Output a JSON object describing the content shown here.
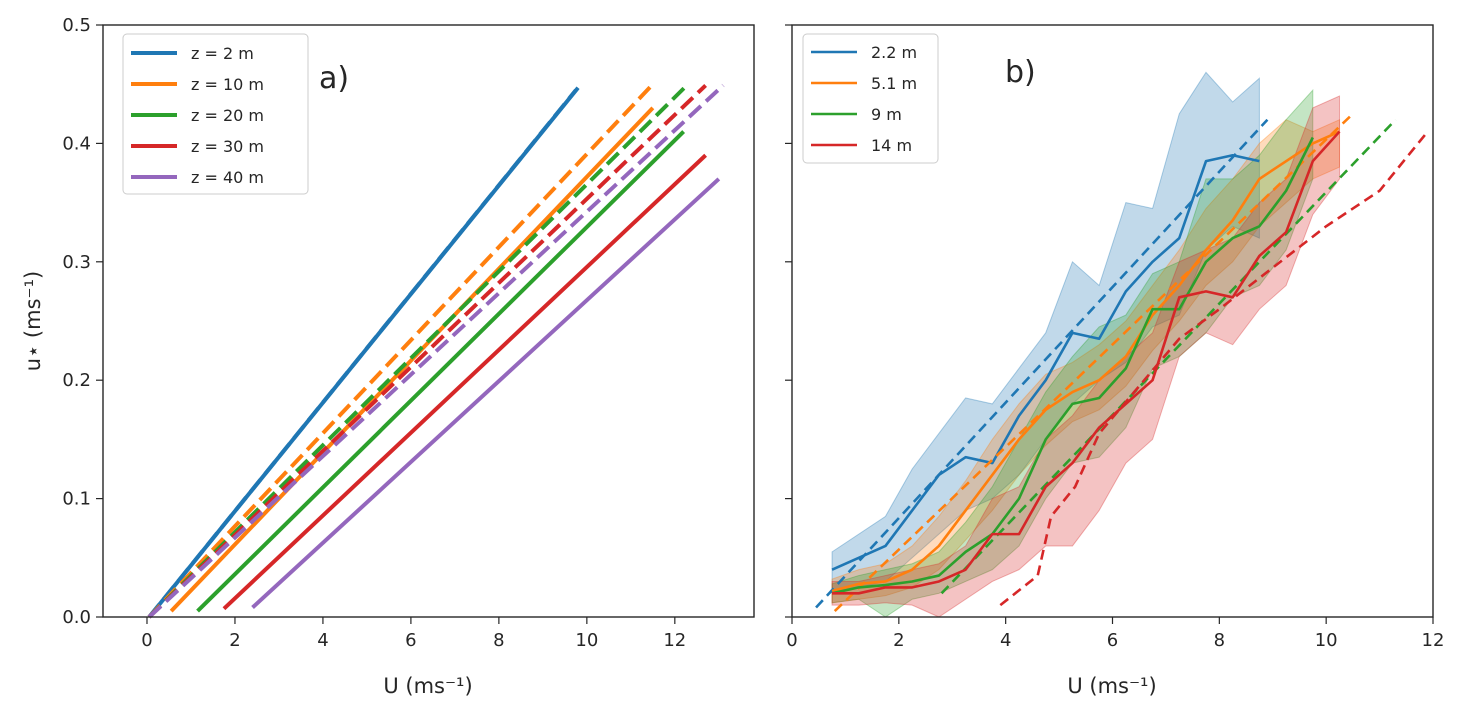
{
  "chart_data": [
    {
      "type": "line",
      "panel_label": "a)",
      "xlabel": "U (ms⁻¹)",
      "ylabel": "u⋆ (ms⁻¹)",
      "xlim": [
        -1.0,
        13.8
      ],
      "ylim": [
        0.0,
        0.5
      ],
      "xticks": [
        0,
        2,
        4,
        6,
        8,
        10,
        12
      ],
      "yticks": [
        0.0,
        0.1,
        0.2,
        0.3,
        0.4,
        0.5
      ],
      "ytick_labels": [
        "0.0",
        "0.1",
        "0.2",
        "0.3",
        "0.4",
        "0.5"
      ],
      "legend_position": "top-left",
      "colors": {
        "blue": "#1f77b4",
        "orange": "#ff7f0e",
        "green": "#2ca02c",
        "red": "#d62728",
        "purple": "#9467bd"
      },
      "series": [
        {
          "name": "z = 2 m",
          "color": "#1f77b4",
          "style": "solid",
          "x": [
            0.05,
            9.8
          ],
          "y": [
            0.0,
            0.447
          ]
        },
        {
          "name": "z = 10 m",
          "color": "#ff7f0e",
          "style": "solid",
          "x": [
            0.55,
            11.5
          ],
          "y": [
            0.005,
            0.43
          ]
        },
        {
          "name": "z = 20 m",
          "color": "#2ca02c",
          "style": "solid",
          "x": [
            1.15,
            12.2
          ],
          "y": [
            0.005,
            0.41
          ]
        },
        {
          "name": "z = 30 m",
          "color": "#d62728",
          "style": "solid",
          "x": [
            1.75,
            12.7
          ],
          "y": [
            0.007,
            0.39
          ]
        },
        {
          "name": "z = 40 m",
          "color": "#9467bd",
          "style": "solid",
          "x": [
            2.4,
            13.0
          ],
          "y": [
            0.008,
            0.37
          ]
        },
        {
          "name": "z = 2 m (dashed)",
          "color": "#1f77b4",
          "style": "dashed",
          "x": [
            0.05,
            9.75
          ],
          "y": [
            0.0,
            0.445
          ]
        },
        {
          "name": "z = 10 m (dashed)",
          "color": "#ff7f0e",
          "style": "dashed",
          "x": [
            0.05,
            11.5
          ],
          "y": [
            0.0,
            0.45
          ]
        },
        {
          "name": "z = 20 m (dashed)",
          "color": "#2ca02c",
          "style": "dashed",
          "x": [
            0.05,
            12.3
          ],
          "y": [
            0.0,
            0.45
          ]
        },
        {
          "name": "z = 30 m (dashed)",
          "color": "#d62728",
          "style": "dashed",
          "x": [
            0.05,
            12.7
          ],
          "y": [
            0.0,
            0.449
          ]
        },
        {
          "name": "z = 40 m (dashed)",
          "color": "#9467bd",
          "style": "dashed",
          "x": [
            0.05,
            13.1
          ],
          "y": [
            0.0,
            0.449
          ]
        }
      ]
    },
    {
      "type": "line",
      "panel_label": "b)",
      "xlabel": "U (ms⁻¹)",
      "xlim": [
        0,
        12
      ],
      "ylim": [
        0.0,
        0.5
      ],
      "xticks": [
        0,
        2,
        4,
        6,
        8,
        10,
        12
      ],
      "legend_position": "top-left",
      "series": [
        {
          "name": "2.2 m",
          "color": "#1f77b4",
          "x": [
            0.75,
            1.75,
            2.25,
            2.75,
            3.25,
            3.75,
            4.25,
            4.75,
            5.25,
            5.75,
            6.25,
            6.75,
            7.25,
            7.75,
            8.25,
            8.75
          ],
          "y": [
            0.04,
            0.06,
            0.09,
            0.12,
            0.135,
            0.13,
            0.17,
            0.2,
            0.24,
            0.235,
            0.275,
            0.3,
            0.32,
            0.385,
            0.39,
            0.385
          ],
          "upper": [
            0.055,
            0.085,
            0.125,
            0.155,
            0.185,
            0.18,
            0.21,
            0.24,
            0.3,
            0.28,
            0.35,
            0.345,
            0.425,
            0.46,
            0.435,
            0.455
          ],
          "lower": [
            0.02,
            0.03,
            0.05,
            0.07,
            0.09,
            0.1,
            0.12,
            0.15,
            0.18,
            0.2,
            0.215,
            0.245,
            0.255,
            0.31,
            0.33,
            0.32
          ],
          "fit_x": [
            0.45,
            8.9
          ],
          "fit_y": [
            0.008,
            0.42
          ]
        },
        {
          "name": "5.1 m",
          "color": "#ff7f0e",
          "x": [
            0.75,
            1.25,
            1.75,
            2.25,
            2.75,
            3.25,
            3.75,
            4.25,
            4.75,
            5.25,
            5.75,
            6.25,
            6.75,
            7.25,
            7.75,
            8.25,
            8.75,
            9.25,
            9.75,
            10.25
          ],
          "y": [
            0.022,
            0.028,
            0.03,
            0.04,
            0.06,
            0.09,
            0.12,
            0.15,
            0.175,
            0.19,
            0.2,
            0.22,
            0.255,
            0.28,
            0.31,
            0.335,
            0.37,
            0.385,
            0.4,
            0.41
          ],
          "upper": [
            0.032,
            0.04,
            0.045,
            0.06,
            0.085,
            0.115,
            0.15,
            0.18,
            0.205,
            0.215,
            0.23,
            0.25,
            0.28,
            0.31,
            0.345,
            0.37,
            0.4,
            0.42,
            0.41,
            0.42
          ],
          "lower": [
            0.012,
            0.015,
            0.018,
            0.025,
            0.04,
            0.065,
            0.09,
            0.12,
            0.145,
            0.165,
            0.175,
            0.195,
            0.225,
            0.25,
            0.28,
            0.3,
            0.33,
            0.35,
            0.37,
            0.38
          ],
          "fit_x": [
            0.8,
            10.5
          ],
          "fit_y": [
            0.005,
            0.425
          ]
        },
        {
          "name": "9 m",
          "color": "#2ca02c",
          "x": [
            0.75,
            1.25,
            1.75,
            2.25,
            2.75,
            3.25,
            3.75,
            4.25,
            4.75,
            5.25,
            5.75,
            6.25,
            6.75,
            7.25,
            7.75,
            8.25,
            8.75,
            9.25,
            9.75
          ],
          "y": [
            0.02,
            0.025,
            0.027,
            0.03,
            0.035,
            0.055,
            0.07,
            0.1,
            0.15,
            0.18,
            0.185,
            0.21,
            0.26,
            0.26,
            0.3,
            0.32,
            0.33,
            0.36,
            0.405
          ],
          "upper": [
            0.028,
            0.035,
            0.04,
            0.045,
            0.055,
            0.08,
            0.11,
            0.15,
            0.19,
            0.22,
            0.245,
            0.255,
            0.29,
            0.3,
            0.37,
            0.37,
            0.39,
            0.42,
            0.445
          ],
          "lower": [
            0.012,
            0.015,
            0.0,
            0.015,
            0.02,
            0.03,
            0.04,
            0.06,
            0.1,
            0.13,
            0.135,
            0.16,
            0.21,
            0.22,
            0.24,
            0.27,
            0.28,
            0.31,
            0.37
          ],
          "fit_x": [
            2.8,
            11.3
          ],
          "fit_y": [
            0.02,
            0.42
          ]
        },
        {
          "name": "14 m",
          "color": "#d62728",
          "x": [
            0.75,
            1.25,
            1.75,
            2.25,
            2.75,
            3.25,
            3.75,
            4.25,
            4.75,
            5.25,
            5.75,
            6.25,
            6.75,
            7.25,
            7.75,
            8.25,
            8.75,
            9.25,
            9.75,
            10.25
          ],
          "y": [
            0.02,
            0.02,
            0.025,
            0.025,
            0.03,
            0.04,
            0.07,
            0.07,
            0.11,
            0.13,
            0.16,
            0.18,
            0.2,
            0.27,
            0.275,
            0.27,
            0.305,
            0.325,
            0.385,
            0.41
          ],
          "upper": [
            0.03,
            0.03,
            0.035,
            0.04,
            0.045,
            0.06,
            0.1,
            0.11,
            0.15,
            0.17,
            0.2,
            0.22,
            0.24,
            0.3,
            0.31,
            0.32,
            0.35,
            0.37,
            0.43,
            0.44
          ],
          "lower": [
            0.01,
            0.01,
            0.012,
            0.01,
            0.0,
            0.015,
            0.03,
            0.04,
            0.06,
            0.06,
            0.09,
            0.13,
            0.15,
            0.22,
            0.24,
            0.23,
            0.26,
            0.28,
            0.34,
            0.37
          ],
          "fit_x": [
            3.9,
            4.6,
            4.85,
            5.3,
            5.75,
            6.5,
            7.25,
            8.0,
            9.0,
            10.0,
            11.0,
            11.9
          ],
          "fit_y": [
            0.01,
            0.035,
            0.085,
            0.11,
            0.155,
            0.195,
            0.235,
            0.26,
            0.295,
            0.33,
            0.36,
            0.41
          ]
        }
      ]
    }
  ]
}
